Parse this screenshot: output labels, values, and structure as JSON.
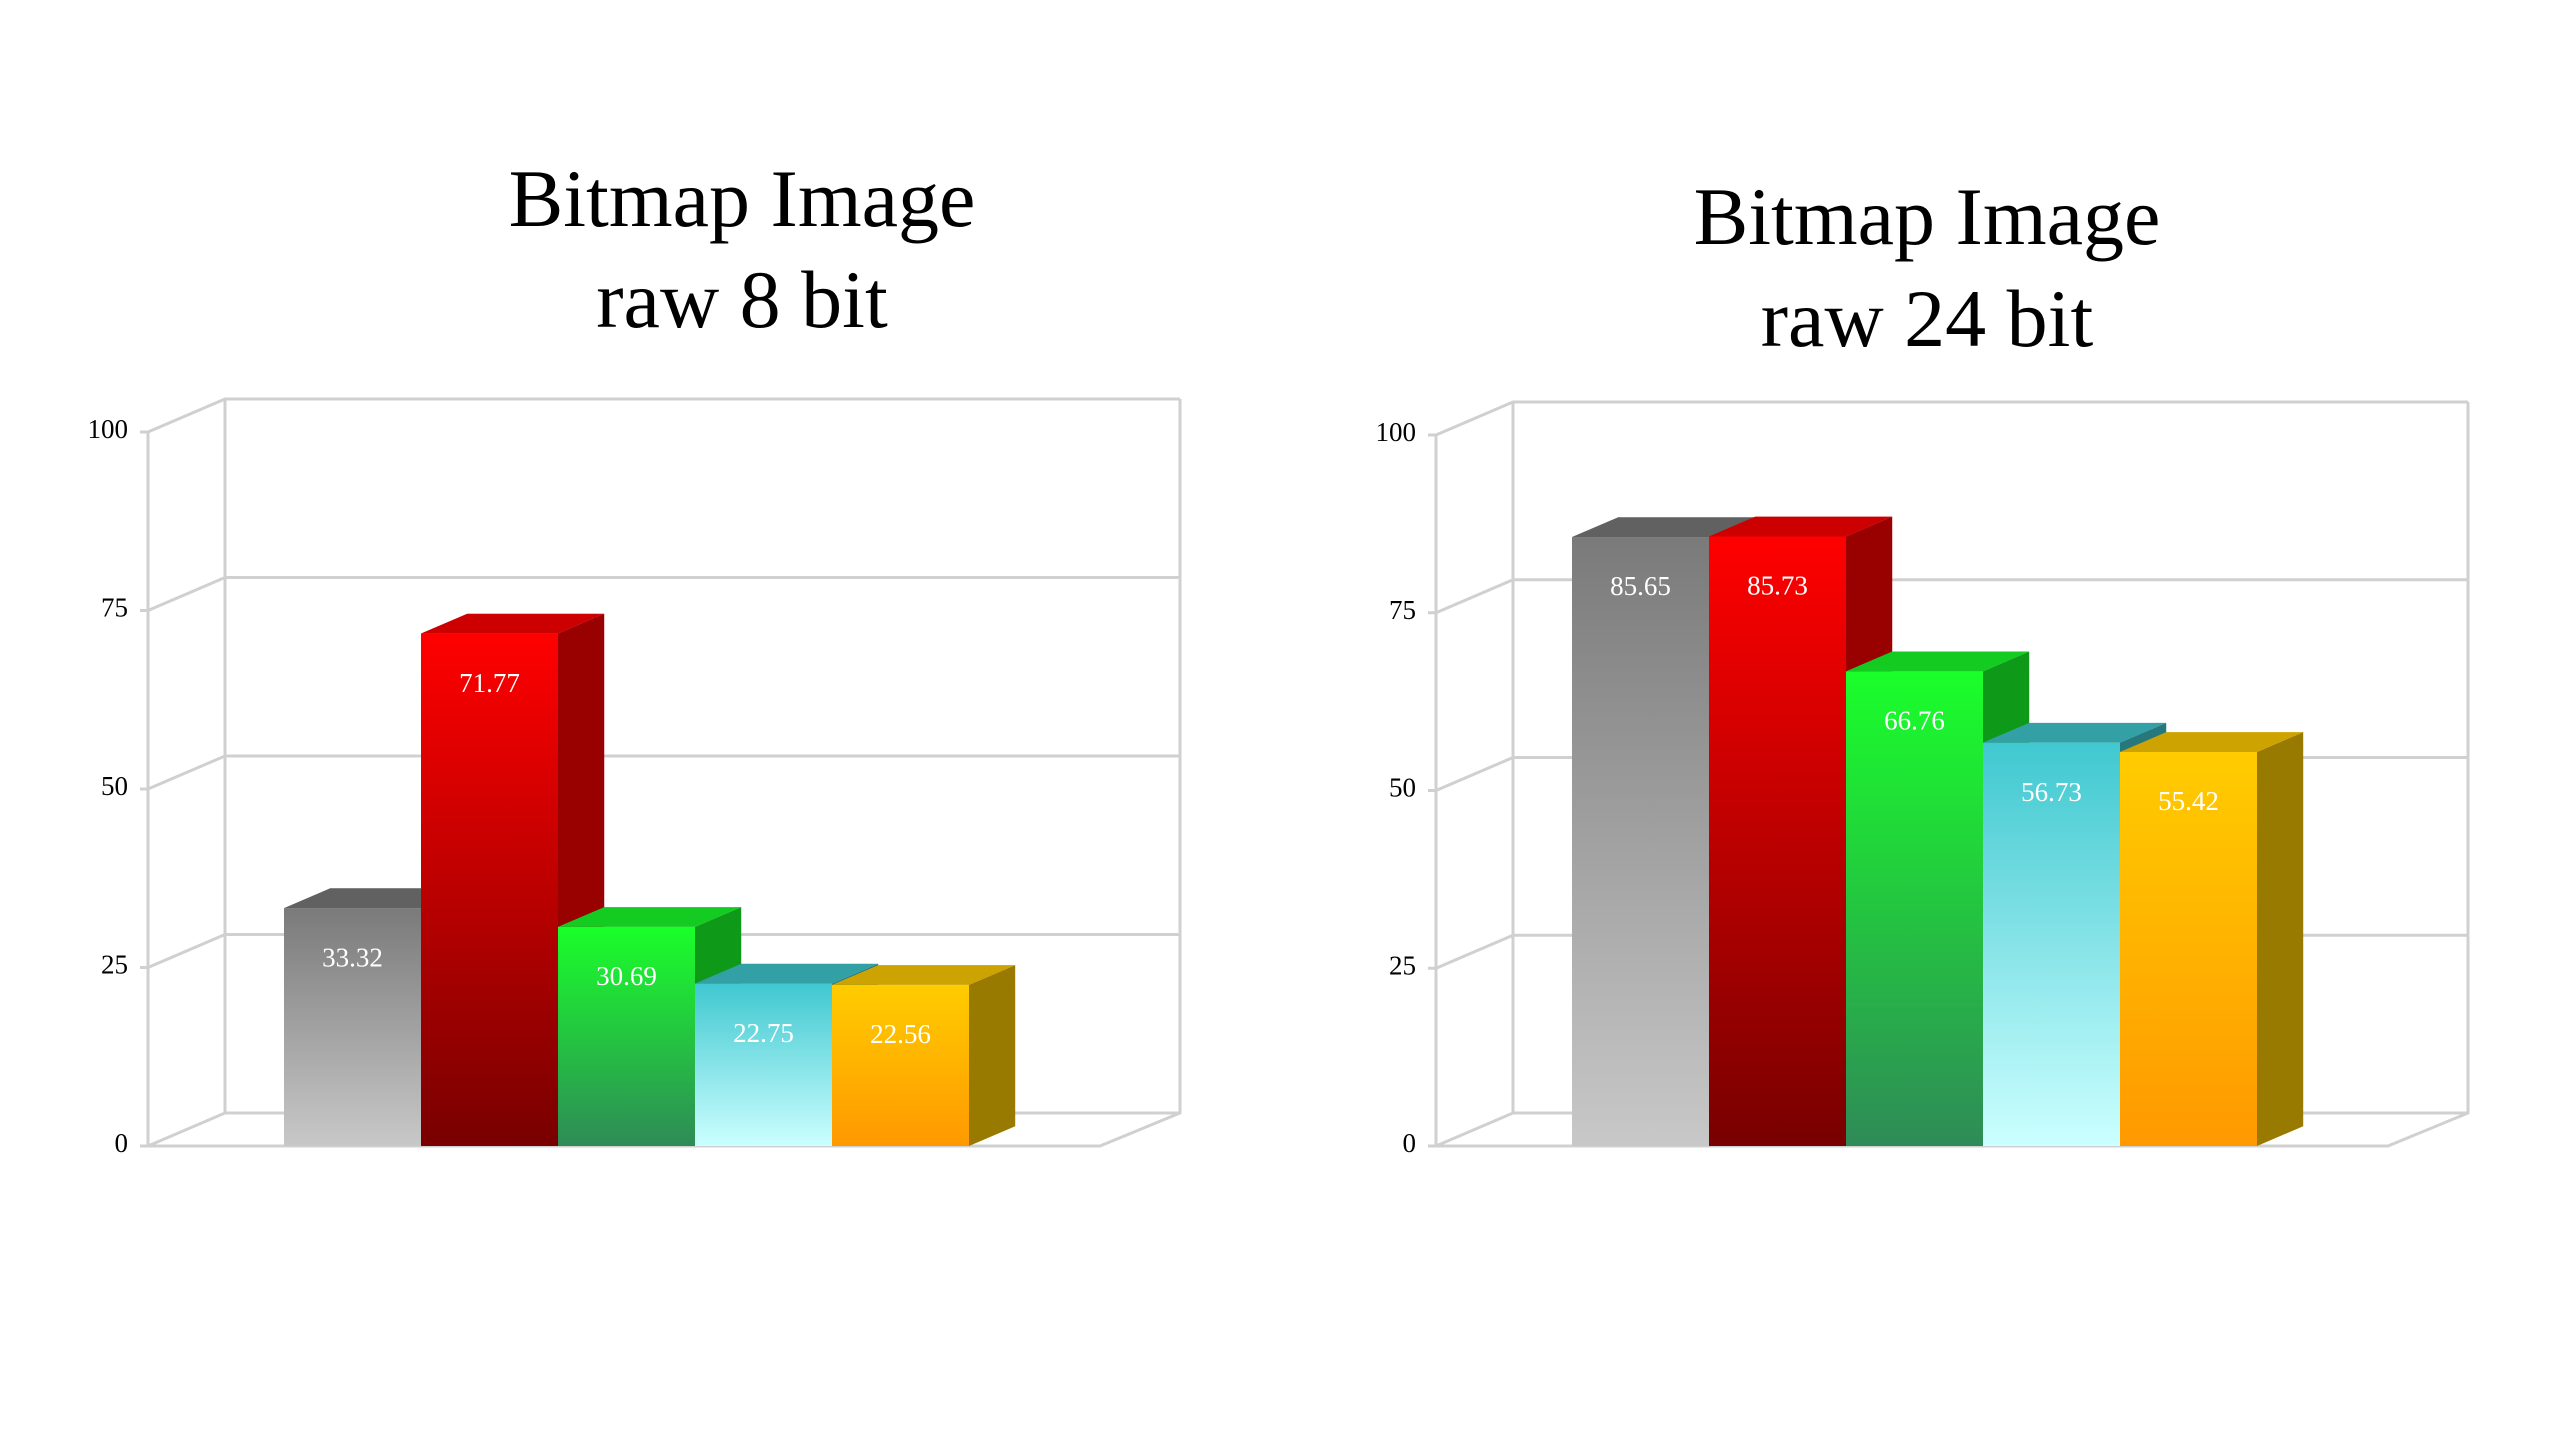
{
  "chart_data": [
    {
      "type": "bar3d",
      "title": [
        "Bitmap Image",
        "raw 8 bit"
      ],
      "categories": [
        null,
        null,
        null,
        null,
        null
      ],
      "values": [
        33.32,
        71.77,
        30.69,
        22.75,
        22.56
      ],
      "colors": [
        "#7a7a7a",
        "#ff0000",
        "#1aff2a",
        "#40c8d0",
        "#ffcc00"
      ],
      "ylim": [
        0,
        100
      ],
      "yticks": [
        0,
        25,
        50,
        75,
        100
      ],
      "grid": true
    },
    {
      "type": "bar3d",
      "title": [
        "Bitmap Image",
        "raw 24 bit"
      ],
      "categories": [
        null,
        null,
        null,
        null,
        null
      ],
      "values": [
        85.65,
        85.73,
        66.76,
        56.73,
        55.42
      ],
      "colors": [
        "#7a7a7a",
        "#ff0000",
        "#1aff2a",
        "#40c8d0",
        "#ffcc00"
      ],
      "ylim": [
        0,
        100
      ],
      "yticks": [
        0,
        25,
        50,
        75,
        100
      ],
      "grid": true
    }
  ]
}
